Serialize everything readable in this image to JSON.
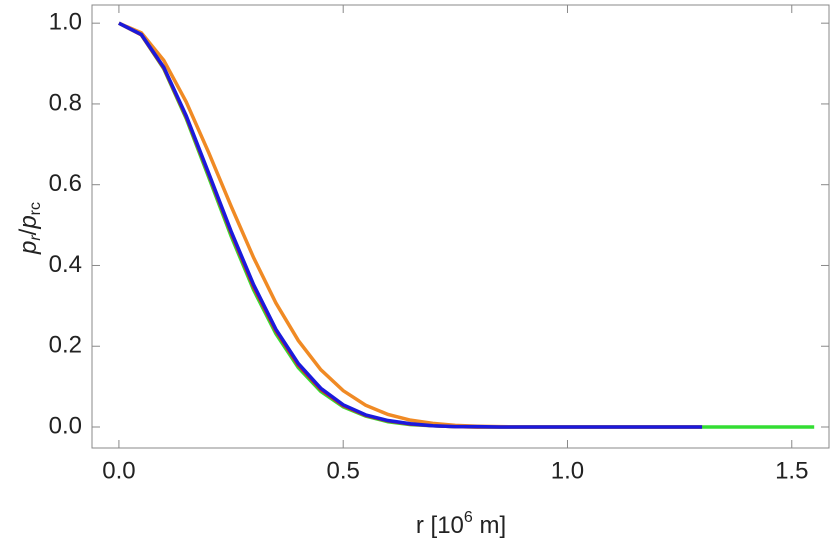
{
  "chart_data": {
    "type": "line",
    "x_label_parts": [
      "r [10",
      "6",
      " m]"
    ],
    "y_label_parts": [
      "p",
      "r",
      "/",
      "p",
      "rc"
    ],
    "x": [
      0,
      0.05,
      0.1,
      0.15,
      0.2,
      0.25,
      0.3,
      0.35,
      0.4,
      0.45,
      0.5,
      0.55,
      0.6,
      0.65,
      0.7,
      0.75,
      0.8,
      0.85,
      0.9,
      0.95,
      1.0,
      1.05,
      1.1,
      1.15,
      1.2,
      1.25,
      1.3,
      1.35,
      1.4,
      1.45,
      1.5,
      1.55
    ],
    "series": [
      {
        "color": "#33dd33",
        "values": [
          1,
          0.971,
          0.887,
          0.764,
          0.619,
          0.473,
          0.34,
          0.231,
          0.147,
          0.088,
          0.05,
          0.027,
          0.013,
          0.006,
          0.003,
          0.001,
          0,
          0,
          0,
          0,
          0,
          0,
          0,
          0,
          0,
          0,
          0,
          0,
          0,
          0,
          0,
          0
        ]
      },
      {
        "color": "#dd2222",
        "values": [
          1,
          0.971,
          0.889,
          0.768,
          0.626,
          0.481,
          0.348,
          0.238,
          0.153,
          0.093,
          0.053,
          0.029,
          0.015,
          0.007,
          0.003,
          0.001,
          0,
          0,
          0,
          0,
          0,
          0,
          0,
          0,
          0,
          0,
          0,
          null,
          null,
          null,
          null,
          null
        ]
      },
      {
        "color": "#f08a24",
        "values": [
          1,
          0.976,
          0.908,
          0.805,
          0.68,
          0.547,
          0.42,
          0.307,
          0.214,
          0.142,
          0.09,
          0.054,
          0.031,
          0.017,
          0.009,
          0.004,
          0.002,
          0.001,
          0,
          0,
          0,
          0,
          0,
          0,
          0,
          0,
          0,
          null,
          null,
          null,
          null,
          null
        ]
      },
      {
        "color": "#1a1adc",
        "values": [
          1,
          0.972,
          0.891,
          0.771,
          0.629,
          0.485,
          0.353,
          0.242,
          0.157,
          0.096,
          0.055,
          0.03,
          0.016,
          0.008,
          0.003,
          0.001,
          0.001,
          0,
          0,
          0,
          0,
          0,
          0,
          0,
          0,
          0,
          0,
          null,
          null,
          null,
          null,
          null
        ]
      }
    ],
    "xlim": [
      -0.06,
      1.583
    ],
    "ylim": [
      -0.052,
      1.045
    ],
    "xticks": [
      {
        "value": 0,
        "label": "0.0"
      },
      0.5,
      {
        "value": 1,
        "label": "1.0"
      },
      1.5
    ],
    "yticks": [
      {
        "value": 0,
        "label": "0.0"
      },
      0.2,
      0.4,
      0.6,
      0.8,
      {
        "value": 1,
        "label": "1.0"
      }
    ]
  }
}
